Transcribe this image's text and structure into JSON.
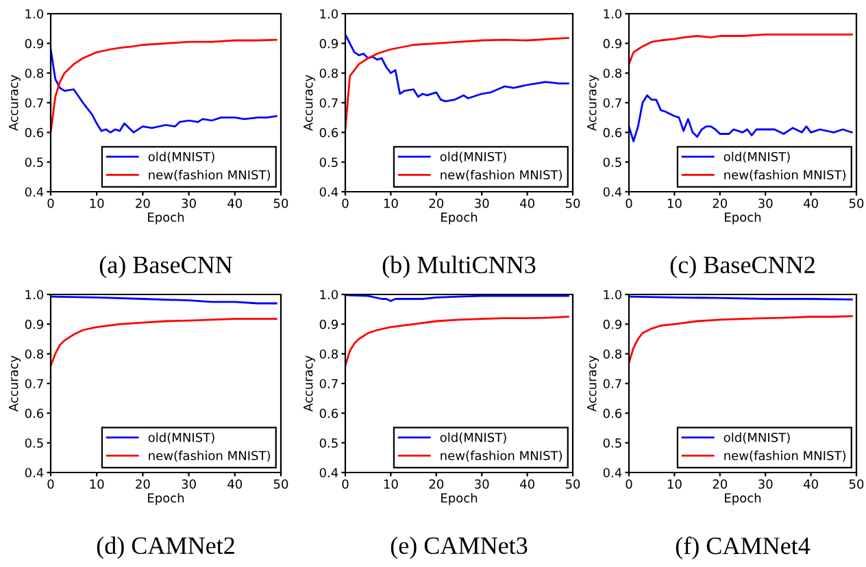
{
  "chart_data": [
    {
      "type": "line",
      "title": "(a) BaseCNN",
      "xlabel": "Epoch",
      "ylabel": "Accuracy",
      "xlim": [
        0,
        50
      ],
      "ylim": [
        0.4,
        1.0
      ],
      "xticks": [
        0,
        10,
        20,
        30,
        40,
        50
      ],
      "yticks": [
        {
          "value": 0.4,
          "label": "0.4"
        },
        {
          "value": 0.5,
          "label": "0.5"
        },
        {
          "value": 0.6,
          "label": "0.6"
        },
        {
          "value": 0.7,
          "label": "0.7"
        },
        {
          "value": 0.8,
          "label": "0.8"
        },
        {
          "value": 0.9,
          "label": "0.9"
        },
        {
          "value": 1.0,
          "label": "1.0"
        }
      ],
      "legend": "bottom right",
      "grid": false,
      "series": [
        {
          "name": "old(MNIST)",
          "color": "#0000ff",
          "x": [
            0,
            1,
            2,
            3,
            5,
            7,
            9,
            10,
            11,
            12,
            13,
            14,
            15,
            16,
            18,
            20,
            22,
            25,
            27,
            28,
            30,
            32,
            33,
            35,
            37,
            40,
            42,
            45,
            47,
            49
          ],
          "values": [
            0.88,
            0.78,
            0.75,
            0.74,
            0.745,
            0.7,
            0.66,
            0.63,
            0.605,
            0.61,
            0.6,
            0.61,
            0.605,
            0.63,
            0.6,
            0.62,
            0.615,
            0.625,
            0.62,
            0.635,
            0.64,
            0.635,
            0.645,
            0.64,
            0.65,
            0.65,
            0.645,
            0.65,
            0.65,
            0.655
          ]
        },
        {
          "name": "new(fashion MNIST)",
          "color": "#ff0000",
          "x": [
            0,
            1,
            2,
            3,
            5,
            7,
            10,
            13,
            15,
            18,
            20,
            25,
            30,
            35,
            40,
            45,
            49
          ],
          "values": [
            0.6,
            0.72,
            0.77,
            0.8,
            0.83,
            0.85,
            0.87,
            0.88,
            0.885,
            0.89,
            0.895,
            0.9,
            0.905,
            0.905,
            0.91,
            0.91,
            0.912
          ]
        }
      ]
    },
    {
      "type": "line",
      "title": "(b) MultiCNN3",
      "xlabel": "Epoch",
      "ylabel": "Accuracy",
      "xlim": [
        0,
        50
      ],
      "ylim": [
        0.4,
        1.0
      ],
      "xticks": [
        0,
        10,
        20,
        30,
        40,
        50
      ],
      "yticks": [
        {
          "value": 0.4,
          "label": "0.4"
        },
        {
          "value": 0.5,
          "label": "0.5"
        },
        {
          "value": 0.6,
          "label": "0.6"
        },
        {
          "value": 0.7,
          "label": "0.7"
        },
        {
          "value": 0.8,
          "label": "0.8"
        },
        {
          "value": 0.9,
          "label": "0.9"
        },
        {
          "value": 1.0,
          "label": "1.0"
        }
      ],
      "legend": "bottom right",
      "grid": false,
      "series": [
        {
          "name": "old(MNIST)",
          "color": "#0000ff",
          "x": [
            0,
            1,
            2,
            3,
            4,
            5,
            6,
            7,
            8,
            9,
            10,
            11,
            12,
            13,
            15,
            16,
            17,
            18,
            20,
            21,
            22,
            24,
            26,
            27,
            30,
            32,
            35,
            37,
            40,
            42,
            44,
            47,
            49
          ],
          "values": [
            0.93,
            0.9,
            0.87,
            0.86,
            0.865,
            0.85,
            0.855,
            0.845,
            0.85,
            0.82,
            0.8,
            0.81,
            0.73,
            0.74,
            0.745,
            0.72,
            0.73,
            0.725,
            0.735,
            0.71,
            0.705,
            0.71,
            0.725,
            0.715,
            0.73,
            0.735,
            0.755,
            0.75,
            0.76,
            0.765,
            0.77,
            0.765,
            0.765
          ]
        },
        {
          "name": "new(fashion MNIST)",
          "color": "#ff0000",
          "x": [
            0,
            1,
            2,
            3,
            5,
            7,
            10,
            15,
            20,
            25,
            30,
            35,
            40,
            45,
            49
          ],
          "values": [
            0.61,
            0.79,
            0.81,
            0.83,
            0.85,
            0.865,
            0.88,
            0.895,
            0.9,
            0.905,
            0.91,
            0.912,
            0.91,
            0.915,
            0.918
          ]
        }
      ]
    },
    {
      "type": "line",
      "title": "(c) BaseCNN2",
      "xlabel": "Epoch",
      "ylabel": "Accuracy",
      "xlim": [
        0,
        50
      ],
      "ylim": [
        0.4,
        1.0
      ],
      "xticks": [
        0,
        10,
        20,
        30,
        40,
        50
      ],
      "yticks": [
        {
          "value": 0.4,
          "label": "0.4"
        },
        {
          "value": 0.5,
          "label": "0.5"
        },
        {
          "value": 0.6,
          "label": "0.6"
        },
        {
          "value": 0.7,
          "label": "0.7"
        },
        {
          "value": 0.8,
          "label": "0.8"
        },
        {
          "value": 0.9,
          "label": "0.9"
        },
        {
          "value": 1.0,
          "label": "1.0"
        }
      ],
      "legend": "bottom right",
      "grid": false,
      "series": [
        {
          "name": "old(MNIST)",
          "color": "#0000ff",
          "x": [
            0,
            1,
            2,
            3,
            4,
            5,
            6,
            7,
            8,
            10,
            11,
            12,
            13,
            14,
            15,
            16,
            17,
            18,
            19,
            20,
            22,
            23,
            25,
            26,
            27,
            28,
            30,
            32,
            34,
            36,
            38,
            39,
            40,
            42,
            45,
            47,
            49
          ],
          "values": [
            0.62,
            0.57,
            0.62,
            0.7,
            0.725,
            0.71,
            0.71,
            0.675,
            0.67,
            0.655,
            0.65,
            0.605,
            0.645,
            0.6,
            0.585,
            0.61,
            0.62,
            0.62,
            0.61,
            0.595,
            0.595,
            0.61,
            0.6,
            0.61,
            0.59,
            0.61,
            0.61,
            0.61,
            0.595,
            0.615,
            0.6,
            0.62,
            0.6,
            0.61,
            0.6,
            0.61,
            0.6
          ]
        },
        {
          "name": "new(fashion MNIST)",
          "color": "#ff0000",
          "x": [
            0,
            1,
            2,
            3,
            5,
            7,
            10,
            12,
            15,
            18,
            20,
            25,
            30,
            35,
            40,
            45,
            49
          ],
          "values": [
            0.83,
            0.87,
            0.88,
            0.89,
            0.905,
            0.91,
            0.915,
            0.92,
            0.925,
            0.92,
            0.925,
            0.925,
            0.93,
            0.93,
            0.93,
            0.93,
            0.93
          ]
        }
      ]
    },
    {
      "type": "line",
      "title": "(d) CAMNet2",
      "xlabel": "Epoch",
      "ylabel": "Accuracy",
      "xlim": [
        0,
        50
      ],
      "ylim": [
        0.4,
        1.0
      ],
      "xticks": [
        0,
        10,
        20,
        30,
        40,
        50
      ],
      "yticks": [
        {
          "value": 0.4,
          "label": "0.4"
        },
        {
          "value": 0.5,
          "label": "0.5"
        },
        {
          "value": 0.6,
          "label": "0.6"
        },
        {
          "value": 0.7,
          "label": "0.7"
        },
        {
          "value": 0.8,
          "label": "0.8"
        },
        {
          "value": 0.9,
          "label": "0.9"
        },
        {
          "value": 1.0,
          "label": "1.0"
        }
      ],
      "legend": "bottom right",
      "grid": false,
      "series": [
        {
          "name": "old(MNIST)",
          "color": "#0000ff",
          "x": [
            0,
            10,
            20,
            30,
            35,
            40,
            45,
            49
          ],
          "values": [
            0.993,
            0.99,
            0.985,
            0.98,
            0.975,
            0.975,
            0.97,
            0.97
          ]
        },
        {
          "name": "new(fashion MNIST)",
          "color": "#ff0000",
          "x": [
            0,
            1,
            2,
            3,
            5,
            7,
            10,
            15,
            20,
            25,
            30,
            35,
            40,
            45,
            49
          ],
          "values": [
            0.76,
            0.8,
            0.83,
            0.845,
            0.865,
            0.88,
            0.89,
            0.9,
            0.905,
            0.91,
            0.912,
            0.915,
            0.918,
            0.918,
            0.918
          ]
        }
      ]
    },
    {
      "type": "line",
      "title": "(e) CAMNet3",
      "xlabel": "Epoch",
      "ylabel": "Accuracy",
      "xlim": [
        0,
        50
      ],
      "ylim": [
        0.4,
        1.0
      ],
      "xticks": [
        0,
        10,
        20,
        30,
        40,
        50
      ],
      "yticks": [
        {
          "value": 0.4,
          "label": "0.4"
        },
        {
          "value": 0.5,
          "label": "0.5"
        },
        {
          "value": 0.6,
          "label": "0.6"
        },
        {
          "value": 0.7,
          "label": "0.7"
        },
        {
          "value": 0.8,
          "label": "0.8"
        },
        {
          "value": 0.9,
          "label": "0.9"
        },
        {
          "value": 1.0,
          "label": "1.0"
        }
      ],
      "legend": "bottom right",
      "grid": false,
      "series": [
        {
          "name": "old(MNIST)",
          "color": "#0000ff",
          "x": [
            0,
            5,
            8,
            9,
            10,
            11,
            13,
            17,
            20,
            25,
            30,
            40,
            49
          ],
          "values": [
            0.998,
            0.995,
            0.985,
            0.985,
            0.978,
            0.985,
            0.985,
            0.985,
            0.99,
            0.993,
            0.995,
            0.995,
            0.995
          ]
        },
        {
          "name": "new(fashion MNIST)",
          "color": "#ff0000",
          "x": [
            0,
            1,
            2,
            3,
            5,
            7,
            10,
            15,
            20,
            25,
            30,
            35,
            40,
            45,
            49
          ],
          "values": [
            0.76,
            0.81,
            0.835,
            0.85,
            0.87,
            0.88,
            0.89,
            0.9,
            0.91,
            0.915,
            0.918,
            0.92,
            0.92,
            0.922,
            0.925
          ]
        }
      ]
    },
    {
      "type": "line",
      "title": "(f) CAMNet4",
      "xlabel": "Epoch",
      "ylabel": "Accuracy",
      "xlim": [
        0,
        50
      ],
      "ylim": [
        0.4,
        1.0
      ],
      "xticks": [
        0,
        10,
        20,
        30,
        40,
        50
      ],
      "yticks": [
        {
          "value": 0.4,
          "label": "0.4"
        },
        {
          "value": 0.5,
          "label": "0.5"
        },
        {
          "value": 0.6,
          "label": "0.6"
        },
        {
          "value": 0.7,
          "label": "0.7"
        },
        {
          "value": 0.8,
          "label": "0.8"
        },
        {
          "value": 0.9,
          "label": "0.9"
        },
        {
          "value": 1.0,
          "label": "1.0"
        }
      ],
      "legend": "bottom right",
      "grid": false,
      "series": [
        {
          "name": "old(MNIST)",
          "color": "#0000ff",
          "x": [
            0,
            10,
            20,
            30,
            40,
            49
          ],
          "values": [
            0.993,
            0.99,
            0.988,
            0.985,
            0.985,
            0.983
          ]
        },
        {
          "name": "new(fashion MNIST)",
          "color": "#ff0000",
          "x": [
            0,
            1,
            2,
            3,
            5,
            7,
            10,
            15,
            20,
            25,
            30,
            35,
            40,
            45,
            49
          ],
          "values": [
            0.77,
            0.82,
            0.85,
            0.87,
            0.885,
            0.895,
            0.9,
            0.91,
            0.915,
            0.918,
            0.92,
            0.922,
            0.925,
            0.925,
            0.927
          ]
        }
      ]
    }
  ]
}
